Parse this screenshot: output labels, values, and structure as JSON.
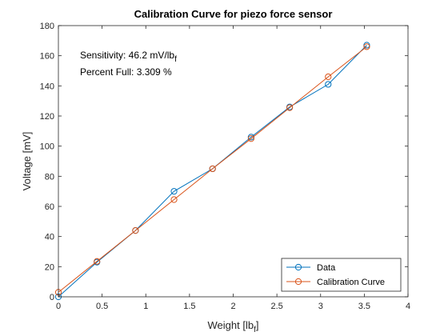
{
  "chart_data": {
    "type": "line",
    "title": "Calibration Curve for piezo force sensor",
    "xlabel": {
      "text": "Weight [lb",
      "sub": "f",
      "suffix": "]"
    },
    "ylabel": "Voltage [mV]",
    "xlim": [
      0,
      4
    ],
    "ylim": [
      0,
      180
    ],
    "xticks": [
      0,
      0.5,
      1,
      1.5,
      2,
      2.5,
      3,
      3.5,
      4
    ],
    "xtick_labels": [
      "0",
      "0.5",
      "1",
      "1.5",
      "2",
      "2.5",
      "3",
      "3.5",
      "4"
    ],
    "yticks": [
      0,
      20,
      40,
      60,
      80,
      100,
      120,
      140,
      160,
      180
    ],
    "ytick_labels": [
      "0",
      "20",
      "40",
      "60",
      "80",
      "100",
      "120",
      "140",
      "160",
      "180"
    ],
    "grid": false,
    "legend_position": "bottom-right",
    "annotations": [
      {
        "text": "Sensitivity: 46.2 mV/lb",
        "sub": "f"
      },
      {
        "text": "Percent Full: 3.309 %",
        "sub": ""
      }
    ],
    "series": [
      {
        "name": "Data",
        "color": "#0072bd",
        "marker": "circle",
        "x": [
          0,
          0.441,
          0.882,
          1.323,
          1.764,
          2.205,
          2.646,
          3.087,
          3.528
        ],
        "y": [
          0,
          23,
          44,
          70,
          85,
          106,
          126,
          141,
          167
        ]
      },
      {
        "name": "Calibration Curve",
        "color": "#d95319",
        "marker": "circle",
        "x": [
          0,
          0.441,
          0.882,
          1.323,
          1.764,
          2.205,
          2.646,
          3.087,
          3.528
        ],
        "y": [
          3,
          23.5,
          44,
          64.5,
          85,
          105,
          125.5,
          146,
          166
        ]
      }
    ]
  }
}
